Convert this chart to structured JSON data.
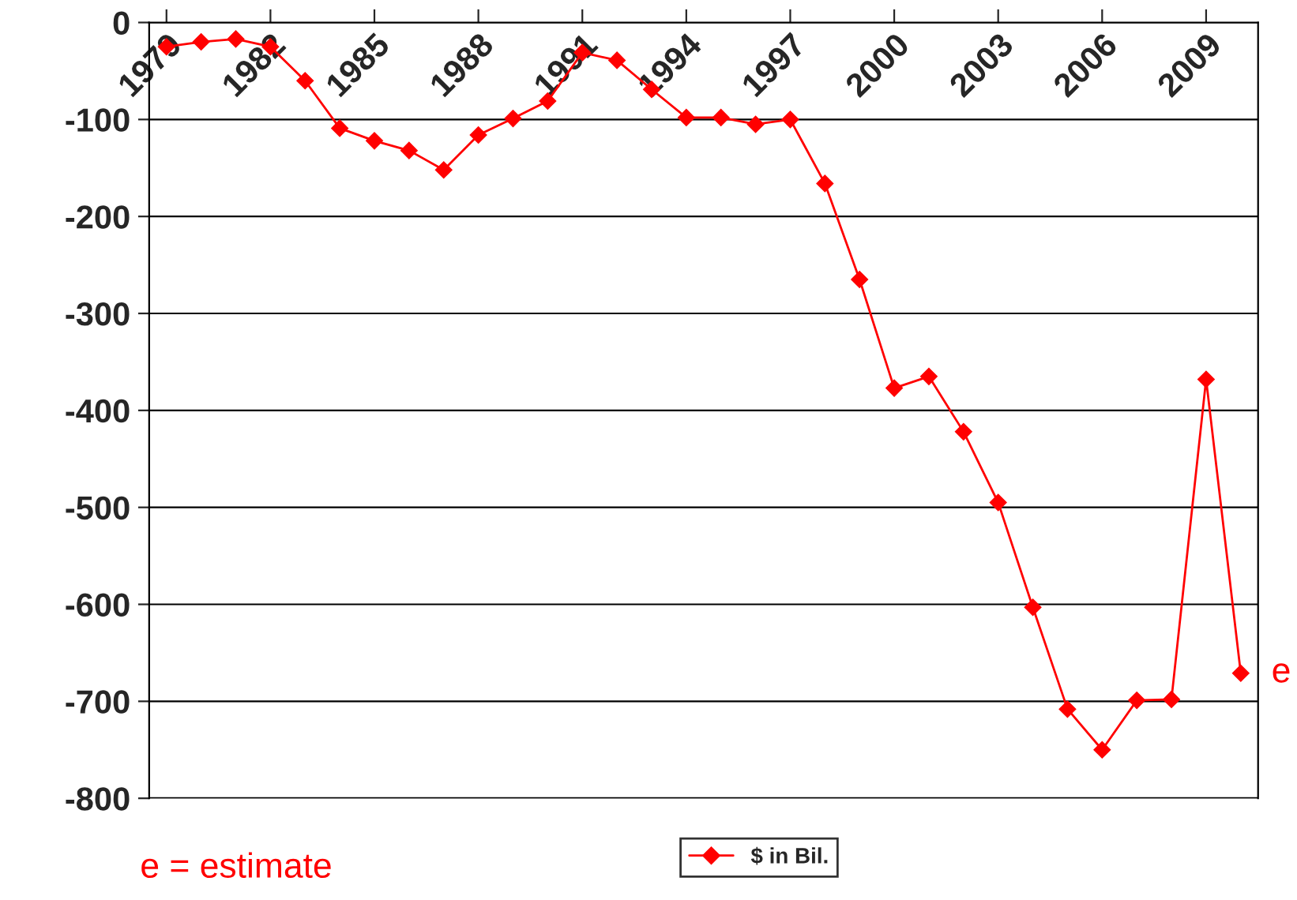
{
  "chart_data": {
    "type": "line",
    "x": [
      1979,
      1980,
      1981,
      1982,
      1983,
      1984,
      1985,
      1986,
      1987,
      1988,
      1989,
      1990,
      1991,
      1992,
      1993,
      1994,
      1995,
      1996,
      1997,
      1998,
      1999,
      2000,
      2001,
      2002,
      2003,
      2004,
      2005,
      2006,
      2007,
      2008,
      2009,
      2010
    ],
    "series": [
      {
        "name": "$ in Bil.",
        "color": "#ff0000",
        "values": [
          -25,
          -20,
          -17,
          -25,
          -60,
          -109,
          -122,
          -132,
          -152,
          -116,
          -99,
          -81,
          -31,
          -39,
          -69,
          -98,
          -98,
          -105,
          -100,
          -166,
          -265,
          -377,
          -365,
          -422,
          -495,
          -603,
          -708,
          -750,
          -699,
          -698,
          -368,
          -671
        ]
      }
    ],
    "xlim": [
      1978.5,
      2010.5
    ],
    "xticks": [
      1979,
      1982,
      1985,
      1988,
      1991,
      1994,
      1997,
      2000,
      2003,
      2006,
      2009
    ],
    "ylim": [
      -800,
      0
    ],
    "yticks": [
      -800,
      -700,
      -600,
      -500,
      -400,
      -300,
      -200,
      -100,
      0
    ],
    "grid": "y",
    "legend": "bottom",
    "marker": "diamond",
    "line_style": "solid",
    "annotations": [
      {
        "text": "e",
        "x": 2010,
        "y": -671
      },
      "e = estimate"
    ]
  }
}
